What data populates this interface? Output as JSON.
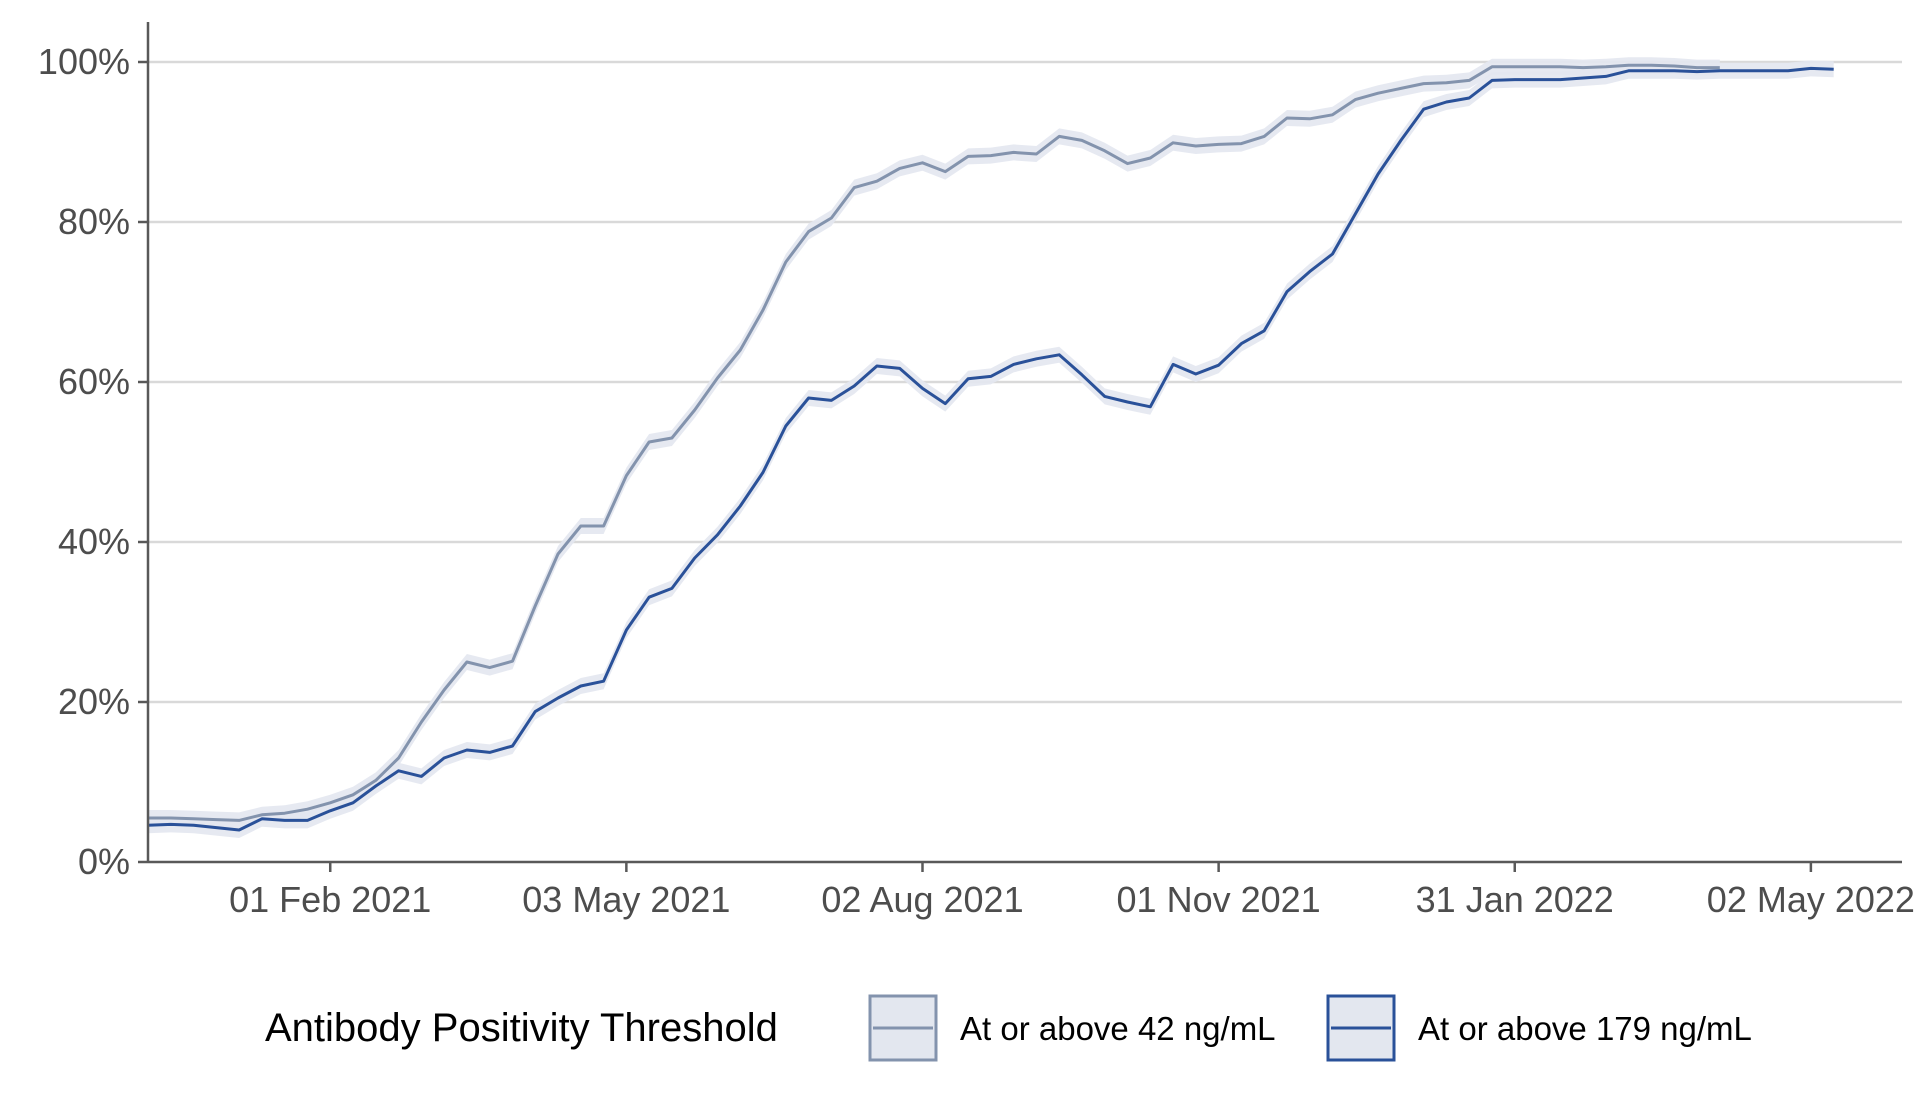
{
  "chart_data": {
    "type": "line",
    "title": "",
    "xlabel": "",
    "ylabel": "",
    "x_range": [
      "2020-12-07",
      "2022-05-30"
    ],
    "ylim": [
      0,
      105
    ],
    "y_ticks": [
      0,
      20,
      40,
      60,
      80,
      100
    ],
    "y_tick_labels": [
      "0%",
      "20%",
      "40%",
      "60%",
      "80%",
      "100%"
    ],
    "x_ticks": [
      "2021-02-01",
      "2021-05-03",
      "2021-08-02",
      "2021-11-01",
      "2022-01-31",
      "2022-05-02"
    ],
    "x_tick_labels": [
      "01 Feb 2021",
      "03 May 2021",
      "02 Aug 2021",
      "01 Nov 2021",
      "31 Jan 2022",
      "02 May 2022"
    ],
    "grid": "horizontal major",
    "legend_position": "bottom",
    "legend_title": "Antibody Positivity Threshold",
    "series": [
      {
        "name": "At or above 42 ng/mL",
        "color": "#8393ad",
        "band_color": "#e3e7ef",
        "ci_halfwidth": 1.0,
        "points": [
          [
            "2020-12-07",
            5.5
          ],
          [
            "2020-12-14",
            5.5
          ],
          [
            "2020-12-21",
            5.4
          ],
          [
            "2020-12-28",
            5.3
          ],
          [
            "2021-01-04",
            5.2
          ],
          [
            "2021-01-11",
            5.9
          ],
          [
            "2021-01-18",
            6.1
          ],
          [
            "2021-01-25",
            6.6
          ],
          [
            "2021-02-01",
            7.4
          ],
          [
            "2021-02-08",
            8.4
          ],
          [
            "2021-02-15",
            10.2
          ],
          [
            "2021-02-22",
            13.0
          ],
          [
            "2021-03-01",
            17.5
          ],
          [
            "2021-03-08",
            21.5
          ],
          [
            "2021-03-15",
            25.0
          ],
          [
            "2021-03-22",
            24.3
          ],
          [
            "2021-03-29",
            25.1
          ],
          [
            "2021-04-05",
            32.0
          ],
          [
            "2021-04-12",
            38.5
          ],
          [
            "2021-04-19",
            42.0
          ],
          [
            "2021-04-26",
            42.0
          ],
          [
            "2021-05-03",
            48.3
          ],
          [
            "2021-05-10",
            52.5
          ],
          [
            "2021-05-17",
            53.0
          ],
          [
            "2021-05-24",
            56.5
          ],
          [
            "2021-05-31",
            60.5
          ],
          [
            "2021-06-07",
            64.0
          ],
          [
            "2021-06-14",
            69.0
          ],
          [
            "2021-06-21",
            75.0
          ],
          [
            "2021-06-28",
            78.8
          ],
          [
            "2021-07-05",
            80.5
          ],
          [
            "2021-07-12",
            84.3
          ],
          [
            "2021-07-19",
            85.1
          ],
          [
            "2021-07-26",
            86.7
          ],
          [
            "2021-08-02",
            87.4
          ],
          [
            "2021-08-09",
            86.3
          ],
          [
            "2021-08-16",
            88.2
          ],
          [
            "2021-08-23",
            88.3
          ],
          [
            "2021-08-30",
            88.7
          ],
          [
            "2021-09-06",
            88.5
          ],
          [
            "2021-09-13",
            90.7
          ],
          [
            "2021-09-20",
            90.2
          ],
          [
            "2021-09-27",
            88.9
          ],
          [
            "2021-10-04",
            87.3
          ],
          [
            "2021-10-11",
            88.0
          ],
          [
            "2021-10-18",
            89.9
          ],
          [
            "2021-10-25",
            89.5
          ],
          [
            "2021-11-01",
            89.7
          ],
          [
            "2021-11-08",
            89.8
          ],
          [
            "2021-11-15",
            90.7
          ],
          [
            "2021-11-22",
            93.0
          ],
          [
            "2021-11-29",
            92.9
          ],
          [
            "2021-12-06",
            93.4
          ],
          [
            "2021-12-13",
            95.3
          ],
          [
            "2021-12-20",
            96.1
          ],
          [
            "2021-12-27",
            96.7
          ],
          [
            "2022-01-03",
            97.3
          ],
          [
            "2022-01-10",
            97.4
          ],
          [
            "2022-01-17",
            97.7
          ],
          [
            "2022-01-24",
            99.4
          ],
          [
            "2022-01-31",
            99.4
          ],
          [
            "2022-02-07",
            99.4
          ],
          [
            "2022-02-14",
            99.4
          ],
          [
            "2022-02-21",
            99.3
          ],
          [
            "2022-02-28",
            99.4
          ],
          [
            "2022-03-07",
            99.6
          ],
          [
            "2022-03-14",
            99.6
          ],
          [
            "2022-03-21",
            99.5
          ],
          [
            "2022-03-28",
            99.3
          ],
          [
            "2022-04-04",
            99.3
          ]
        ]
      },
      {
        "name": "At or above 179 ng/mL",
        "color": "#2a5199",
        "band_color": "#e3e7ef",
        "ci_halfwidth": 1.0,
        "points": [
          [
            "2020-12-07",
            4.6
          ],
          [
            "2020-12-14",
            4.7
          ],
          [
            "2020-12-21",
            4.6
          ],
          [
            "2020-12-28",
            4.3
          ],
          [
            "2021-01-04",
            4.0
          ],
          [
            "2021-01-11",
            5.4
          ],
          [
            "2021-01-18",
            5.2
          ],
          [
            "2021-01-25",
            5.2
          ],
          [
            "2021-02-01",
            6.4
          ],
          [
            "2021-02-08",
            7.4
          ],
          [
            "2021-02-15",
            9.5
          ],
          [
            "2021-02-22",
            11.4
          ],
          [
            "2021-03-01",
            10.7
          ],
          [
            "2021-03-08",
            13.0
          ],
          [
            "2021-03-15",
            14.0
          ],
          [
            "2021-03-22",
            13.7
          ],
          [
            "2021-03-29",
            14.5
          ],
          [
            "2021-04-05",
            18.8
          ],
          [
            "2021-04-12",
            20.5
          ],
          [
            "2021-04-19",
            22.0
          ],
          [
            "2021-04-26",
            22.6
          ],
          [
            "2021-05-03",
            29.0
          ],
          [
            "2021-05-10",
            33.1
          ],
          [
            "2021-05-17",
            34.2
          ],
          [
            "2021-05-24",
            38.0
          ],
          [
            "2021-05-31",
            40.9
          ],
          [
            "2021-06-07",
            44.5
          ],
          [
            "2021-06-14",
            48.7
          ],
          [
            "2021-06-21",
            54.5
          ],
          [
            "2021-06-28",
            58.0
          ],
          [
            "2021-07-05",
            57.7
          ],
          [
            "2021-07-12",
            59.5
          ],
          [
            "2021-07-19",
            62.0
          ],
          [
            "2021-07-26",
            61.7
          ],
          [
            "2021-08-02",
            59.2
          ],
          [
            "2021-08-09",
            57.3
          ],
          [
            "2021-08-16",
            60.4
          ],
          [
            "2021-08-23",
            60.7
          ],
          [
            "2021-08-30",
            62.2
          ],
          [
            "2021-09-06",
            62.9
          ],
          [
            "2021-09-13",
            63.4
          ],
          [
            "2021-09-20",
            60.9
          ],
          [
            "2021-09-27",
            58.2
          ],
          [
            "2021-10-04",
            57.5
          ],
          [
            "2021-10-11",
            56.9
          ],
          [
            "2021-10-18",
            62.2
          ],
          [
            "2021-10-25",
            61.0
          ],
          [
            "2021-11-01",
            62.1
          ],
          [
            "2021-11-08",
            64.8
          ],
          [
            "2021-11-15",
            66.4
          ],
          [
            "2021-11-22",
            71.3
          ],
          [
            "2021-11-29",
            73.8
          ],
          [
            "2021-12-06",
            76.0
          ],
          [
            "2021-12-13",
            81.0
          ],
          [
            "2021-12-20",
            86.0
          ],
          [
            "2021-12-27",
            90.2
          ],
          [
            "2022-01-03",
            94.1
          ],
          [
            "2022-01-10",
            95.0
          ],
          [
            "2022-01-17",
            95.5
          ],
          [
            "2022-01-24",
            97.7
          ],
          [
            "2022-01-31",
            97.8
          ],
          [
            "2022-02-07",
            97.8
          ],
          [
            "2022-02-14",
            97.8
          ],
          [
            "2022-02-21",
            98.0
          ],
          [
            "2022-02-28",
            98.2
          ],
          [
            "2022-03-07",
            98.9
          ],
          [
            "2022-03-14",
            98.9
          ],
          [
            "2022-03-21",
            98.9
          ],
          [
            "2022-03-28",
            98.8
          ],
          [
            "2022-04-04",
            98.9
          ],
          [
            "2022-04-11",
            98.9
          ],
          [
            "2022-04-18",
            98.9
          ],
          [
            "2022-04-25",
            98.9
          ],
          [
            "2022-05-02",
            99.2
          ],
          [
            "2022-05-09",
            99.1
          ]
        ]
      }
    ]
  }
}
